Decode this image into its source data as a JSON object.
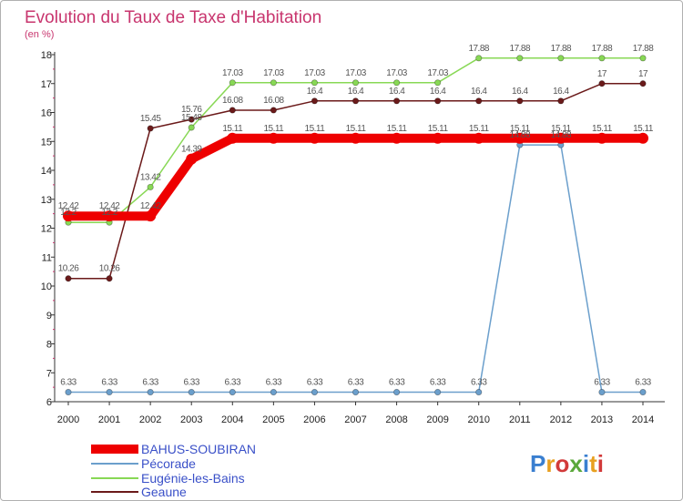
{
  "chart_data": {
    "type": "line",
    "title": "Evolution du Taux de Taxe d'Habitation",
    "subtitle": "(en %)",
    "x": [
      "2000",
      "2001",
      "2002",
      "2003",
      "2004",
      "2005",
      "2006",
      "2007",
      "2008",
      "2009",
      "2010",
      "2011",
      "2012",
      "2013",
      "2014"
    ],
    "ylim": [
      6,
      18
    ],
    "yticks": [
      6,
      7,
      8,
      9,
      10,
      11,
      12,
      13,
      14,
      15,
      16,
      17,
      18
    ],
    "grid": false,
    "legend_position": "bottom-left",
    "series": [
      {
        "name": "BAHUS-SOUBIRAN",
        "color": "#ee0000",
        "values": [
          12.42,
          12.42,
          12.42,
          14.39,
          15.11,
          15.11,
          15.11,
          15.11,
          15.11,
          15.11,
          15.11,
          15.11,
          15.11,
          15.11,
          15.11
        ],
        "labels": [
          "12.42",
          "12.42",
          "12.42",
          "14.39",
          "15.11",
          "15.11",
          "15.11",
          "15.11",
          "15.11",
          "15.11",
          "15.11",
          "15.11",
          "15.11",
          "15.11",
          "15.11"
        ]
      },
      {
        "name": "Pécorade",
        "color": "#6b9fcc",
        "values": [
          6.33,
          6.33,
          6.33,
          6.33,
          6.33,
          6.33,
          6.33,
          6.33,
          6.33,
          6.33,
          6.33,
          14.88,
          14.88,
          6.33,
          6.33
        ],
        "labels": [
          "6.33",
          "6.33",
          "6.33",
          "6.33",
          "6.33",
          "6.33",
          "6.33",
          "6.33",
          "6.33",
          "6.33",
          "6.33",
          "14.88",
          "14.88",
          "6.33",
          "6.33"
        ]
      },
      {
        "name": "Eugénie-les-Bains",
        "color": "#88d855",
        "values": [
          12.2,
          12.2,
          13.42,
          15.48,
          17.03,
          17.03,
          17.03,
          17.03,
          17.03,
          17.03,
          17.88,
          17.88,
          17.88,
          17.88,
          17.88
        ],
        "labels": [
          "12.2",
          "12.2",
          "13.42",
          "15.48",
          "17.03",
          "17.03",
          "17.03",
          "17.03",
          "17.03",
          "17.03",
          "17.88",
          "17.88",
          "17.88",
          "17.88",
          "17.88"
        ]
      },
      {
        "name": "Geaune",
        "color": "#6b1a1a",
        "values": [
          10.26,
          10.26,
          15.45,
          15.76,
          16.08,
          16.08,
          16.4,
          16.4,
          16.4,
          16.4,
          16.4,
          16.4,
          16.4,
          17,
          17
        ],
        "labels": [
          "10.26",
          "10.26",
          "15.45",
          "15.76",
          "16.08",
          "16.08",
          "16.4",
          "16.4",
          "16.4",
          "16.4",
          "16.4",
          "16.4",
          "16.4",
          "17",
          "17"
        ]
      }
    ]
  },
  "logo": {
    "text": "Proxiti"
  }
}
